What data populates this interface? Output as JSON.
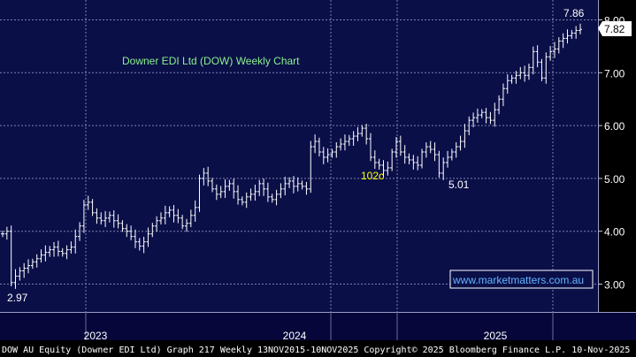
{
  "chart_data": {
    "type": "ohlc",
    "title": "Downer EDI Ltd (DOW) Weekly Chart",
    "period_labels": [
      "2023",
      "2024",
      "2025"
    ],
    "y_ticks": [
      "3.00",
      "4.00",
      "5.00",
      "6.00",
      "7.00",
      "8.00"
    ],
    "ylim": [
      2.6,
      8.3
    ],
    "last_price": "7.82",
    "annotations": [
      {
        "text": "2.97",
        "value": 2.97,
        "color": "#ffffff"
      },
      {
        "text": "102c",
        "value": 5.1,
        "color": "#ffff00"
      },
      {
        "text": "5.01",
        "value": 5.01,
        "color": "#ffffff"
      },
      {
        "text": "7.86",
        "value": 7.86,
        "color": "#ffffff"
      }
    ],
    "watermark": "www.marketmatters.com.au",
    "grid": true,
    "colors": {
      "background": "#0a0f48",
      "grid": "#7d82ad",
      "bars": "#ffffff",
      "title": "#8cf08c",
      "watermark": "#64b4ff"
    },
    "weekly_closes": [
      3.95,
      4.0,
      3.03,
      3.15,
      3.25,
      3.3,
      3.35,
      3.42,
      3.48,
      3.55,
      3.6,
      3.65,
      3.7,
      3.62,
      3.58,
      3.65,
      3.7,
      3.9,
      4.1,
      4.5,
      4.55,
      4.35,
      4.25,
      4.2,
      4.25,
      4.3,
      4.2,
      4.15,
      4.05,
      4.0,
      3.9,
      3.8,
      3.72,
      3.8,
      3.95,
      4.1,
      4.2,
      4.25,
      4.35,
      4.4,
      4.3,
      4.25,
      4.1,
      4.15,
      4.3,
      4.45,
      5.0,
      5.1,
      4.95,
      4.8,
      4.7,
      4.75,
      4.85,
      4.9,
      4.75,
      4.6,
      4.55,
      4.65,
      4.7,
      4.75,
      4.9,
      4.8,
      4.65,
      4.6,
      4.7,
      4.8,
      4.9,
      4.95,
      4.85,
      4.9,
      4.85,
      4.8,
      5.6,
      5.7,
      5.5,
      5.4,
      5.45,
      5.5,
      5.6,
      5.65,
      5.7,
      5.75,
      5.8,
      5.85,
      5.95,
      5.75,
      5.4,
      5.3,
      5.25,
      5.15,
      5.2,
      5.5,
      5.7,
      5.5,
      5.4,
      5.35,
      5.3,
      5.25,
      5.5,
      5.6,
      5.55,
      5.45,
      5.1,
      5.3,
      5.4,
      5.5,
      5.6,
      5.7,
      5.9,
      6.1,
      6.15,
      6.2,
      6.25,
      6.15,
      6.1,
      6.3,
      6.5,
      6.7,
      6.85,
      6.9,
      6.95,
      7.0,
      6.95,
      7.1,
      7.4,
      7.2,
      6.9,
      7.3,
      7.4,
      7.45,
      7.6,
      7.65,
      7.7,
      7.75,
      7.8,
      7.82
    ]
  },
  "footer": {
    "text": "DOW AU Equity (Downer EDI Ltd) Graph 217 Weekly 13NOV2015-10NOV2025 Copyright© 2025 Bloomberg Finance L.P. 10-Nov-2025 21:28:26"
  }
}
